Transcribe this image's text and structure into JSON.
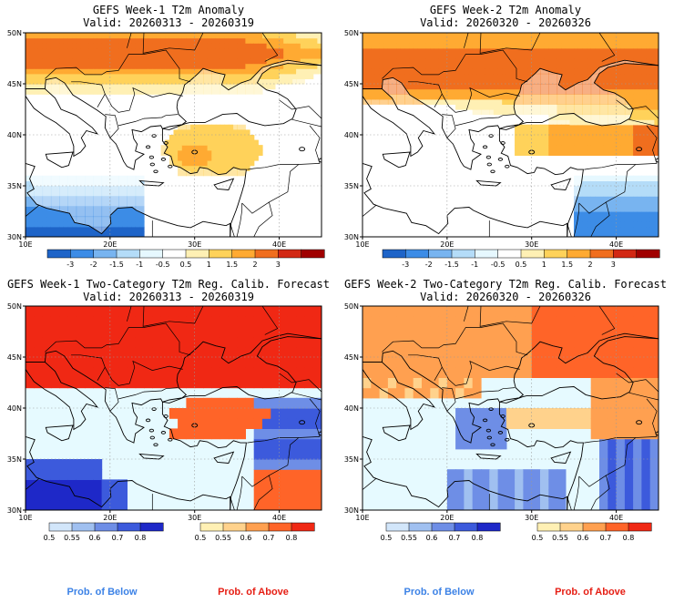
{
  "panels": [
    {
      "title": "GEFS Week-1 T2m Anomaly",
      "valid": "Valid: 20260313 - 20260319",
      "kind": "anom",
      "week": 1
    },
    {
      "title": "GEFS Week-2 T2m Anomaly",
      "valid": "Valid: 20260320 - 20260326",
      "kind": "anom",
      "week": 2
    },
    {
      "title": "GEFS Week-1 Two-Category T2m Reg. Calib. Forecast",
      "valid": "Valid: 20260313 - 20260319",
      "kind": "prob",
      "week": 1
    },
    {
      "title": "GEFS Week-2 Two-Category T2m Reg. Calib. Forecast",
      "valid": "Valid: 20260320 - 20260326",
      "kind": "prob",
      "week": 2
    }
  ],
  "axes": {
    "lat_labels": [
      "50N",
      "45N",
      "40N",
      "35N",
      "30N"
    ],
    "lon_labels": [
      "10E",
      "20E",
      "30E",
      "40E"
    ]
  },
  "anomaly_colorbar": {
    "ticks": [
      "-3",
      "-2",
      "-1.5",
      "-1",
      "-0.5",
      "0.5",
      "1",
      "1.5",
      "2",
      "3"
    ],
    "colors": [
      "#1e64c8",
      "#3c8ce6",
      "#78b4f0",
      "#b4dcf8",
      "#e6f8ff",
      "#ffffff",
      "#fff0b4",
      "#ffd25a",
      "#ffaa32",
      "#f06e1e",
      "#d22814",
      "#a00000"
    ]
  },
  "prob_colorbar_below": {
    "ticks": [
      "0.5",
      "0.55",
      "0.6",
      "0.7",
      "0.8"
    ],
    "colors": [
      "#d2e6fa",
      "#a0c0f0",
      "#6e8ee6",
      "#3c5adc",
      "#1e28c8"
    ]
  },
  "prob_colorbar_above": {
    "ticks": [
      "0.5",
      "0.55",
      "0.6",
      "0.7",
      "0.8"
    ],
    "colors": [
      "#fff0b4",
      "#ffd28c",
      "#ffa050",
      "#ff6428",
      "#f02814"
    ]
  },
  "legend": {
    "below_label": "Prob. of Below",
    "above_label": "Prob. of Above",
    "below_color": "#3c82e6",
    "above_color": "#e61e14"
  },
  "map_colors": {
    "sea_prob": "#e6faff",
    "sea_anom": "#ffffff",
    "coast": "#000000"
  }
}
